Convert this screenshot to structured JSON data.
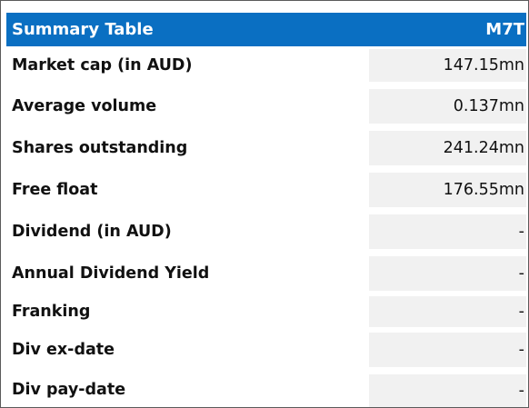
{
  "table": {
    "title": "Summary Table",
    "ticker": "M7T",
    "rows": [
      {
        "label": "Market cap (in AUD)",
        "value": "147.15mn"
      },
      {
        "label": "Average volume",
        "value": "0.137mn"
      },
      {
        "label": "Shares outstanding",
        "value": "241.24mn"
      },
      {
        "label": "Free float",
        "value": "176.55mn"
      },
      {
        "label": "Dividend (in AUD)",
        "value": "-"
      },
      {
        "label": "Annual Dividend Yield",
        "value": "-"
      },
      {
        "label": "Franking",
        "value": "-"
      },
      {
        "label": "Div ex-date",
        "value": "-"
      },
      {
        "label": "Div pay-date",
        "value": "-"
      }
    ]
  }
}
